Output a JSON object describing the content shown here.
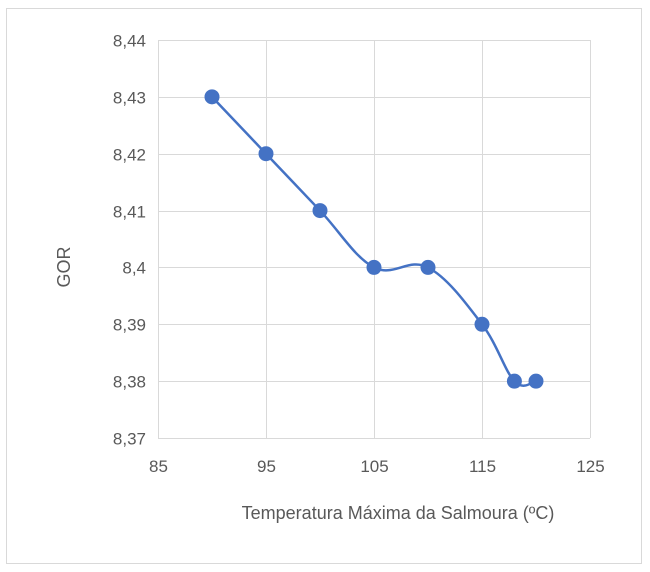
{
  "chart_data": {
    "type": "line",
    "title": "",
    "xlabel": "Temperatura Máxima da Salmoura (ºC)",
    "ylabel": "GOR",
    "xlim": [
      85,
      125
    ],
    "ylim": [
      8.37,
      8.44
    ],
    "x_ticks": [
      "85",
      "95",
      "105",
      "115",
      "125"
    ],
    "x_tick_values": [
      85,
      95,
      105,
      115,
      125
    ],
    "y_ticks": [
      "8,37",
      "8,38",
      "8,39",
      "8,4",
      "8,41",
      "8,42",
      "8,43",
      "8,44"
    ],
    "y_tick_values": [
      8.37,
      8.38,
      8.39,
      8.4,
      8.41,
      8.42,
      8.43,
      8.44
    ],
    "grid": true,
    "legend": "none",
    "series": [
      {
        "color": "#4472C4",
        "smooth": true,
        "x": [
          90,
          95,
          100,
          105,
          110,
          115,
          118,
          120
        ],
        "y": [
          8.43,
          8.42,
          8.41,
          8.4,
          8.4,
          8.39,
          8.38,
          8.38
        ]
      }
    ],
    "colors": {
      "gridline": "#d9d9d9",
      "axis_text": "#595959",
      "frame_border": "#d9d9d9"
    }
  }
}
